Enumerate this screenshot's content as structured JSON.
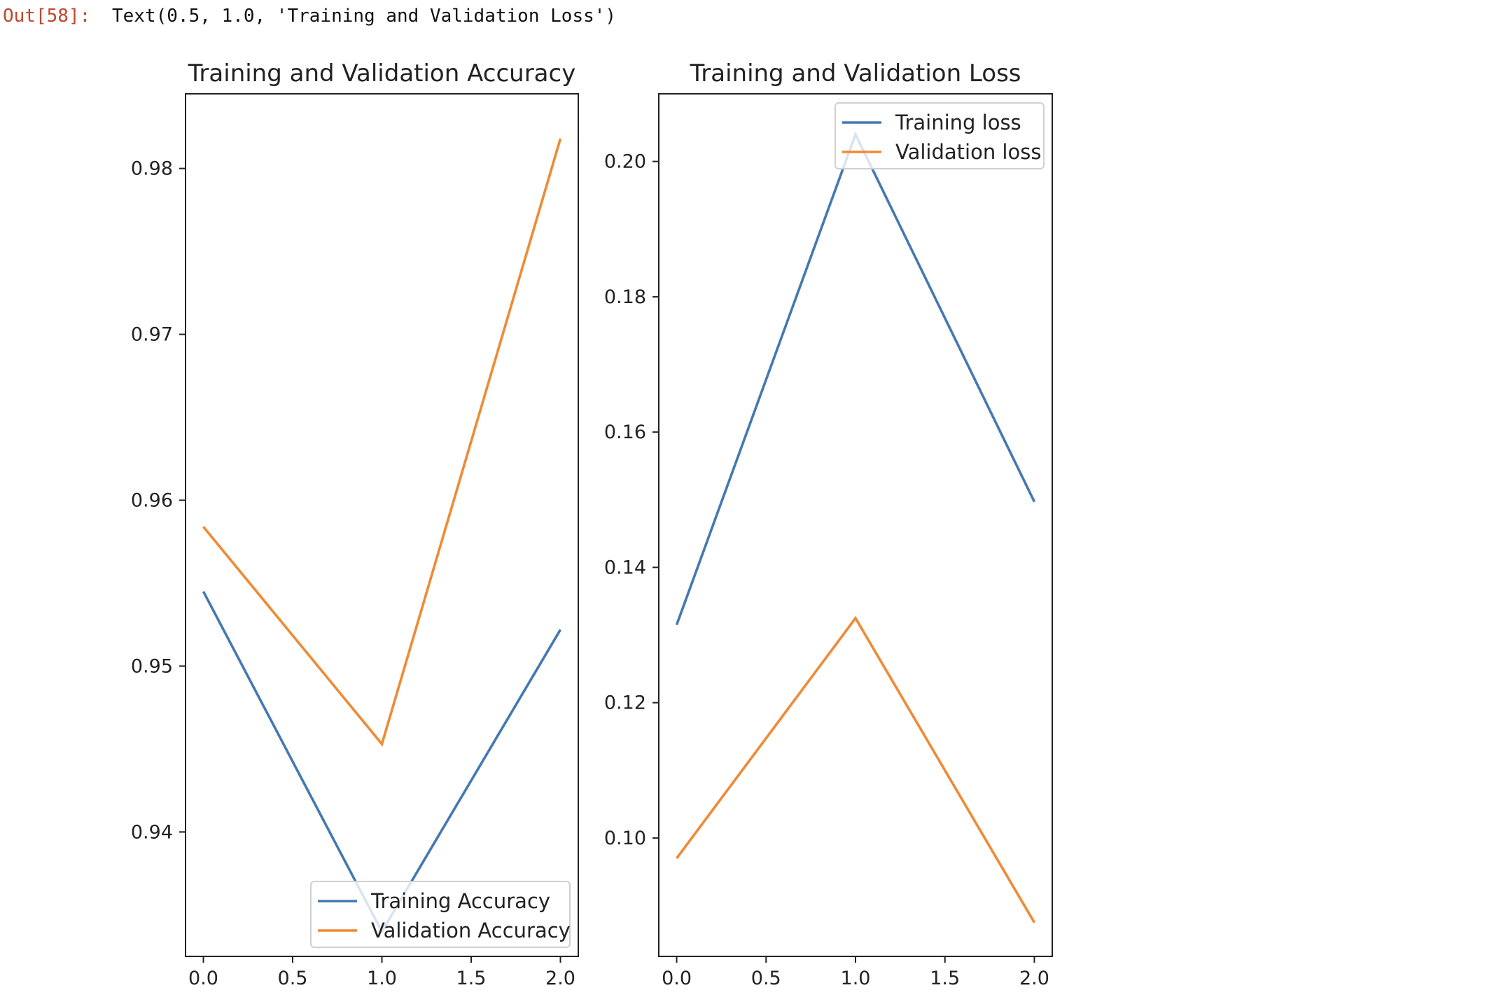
{
  "cell": {
    "prompt": "Out[58]:",
    "output_text": "Text(0.5, 1.0, 'Training and Validation Loss')"
  },
  "colors": {
    "training": "#4479b0",
    "validation": "#ef8a35"
  },
  "chart_data": [
    {
      "type": "line",
      "title": "Training and Validation Accuracy",
      "xlabel": "",
      "ylabel": "",
      "x": [
        0,
        1,
        2
      ],
      "xlim": [
        -0.1,
        2.1
      ],
      "ylim": [
        0.9325,
        0.9845
      ],
      "xticks": [
        0.0,
        0.5,
        1.0,
        1.5,
        2.0
      ],
      "xtick_labels": [
        "0.0",
        "0.5",
        "1.0",
        "1.5",
        "2.0"
      ],
      "yticks": [
        0.94,
        0.95,
        0.96,
        0.97,
        0.98
      ],
      "ytick_labels": [
        "0.94",
        "0.95",
        "0.96",
        "0.97",
        "0.98"
      ],
      "grid": false,
      "legend_position": "lower-right",
      "series": [
        {
          "name": "Training Accuracy",
          "values": [
            0.9545,
            0.934,
            0.9522
          ]
        },
        {
          "name": "Validation Accuracy",
          "values": [
            0.9584,
            0.9453,
            0.9818
          ]
        }
      ]
    },
    {
      "type": "line",
      "title": "Training and Validation Loss",
      "xlabel": "",
      "ylabel": "",
      "x": [
        0,
        1,
        2
      ],
      "xlim": [
        -0.1,
        2.1
      ],
      "ylim": [
        0.0825,
        0.21
      ],
      "xticks": [
        0.0,
        0.5,
        1.0,
        1.5,
        2.0
      ],
      "xtick_labels": [
        "0.0",
        "0.5",
        "1.0",
        "1.5",
        "2.0"
      ],
      "yticks": [
        0.1,
        0.12,
        0.14,
        0.16,
        0.18,
        0.2
      ],
      "ytick_labels": [
        "0.10",
        "0.12",
        "0.14",
        "0.16",
        "0.18",
        "0.20"
      ],
      "grid": false,
      "legend_position": "upper-right",
      "series": [
        {
          "name": "Training loss",
          "values": [
            0.1315,
            0.204,
            0.1497
          ]
        },
        {
          "name": "Validation loss",
          "values": [
            0.097,
            0.1325,
            0.0875
          ]
        }
      ]
    }
  ]
}
